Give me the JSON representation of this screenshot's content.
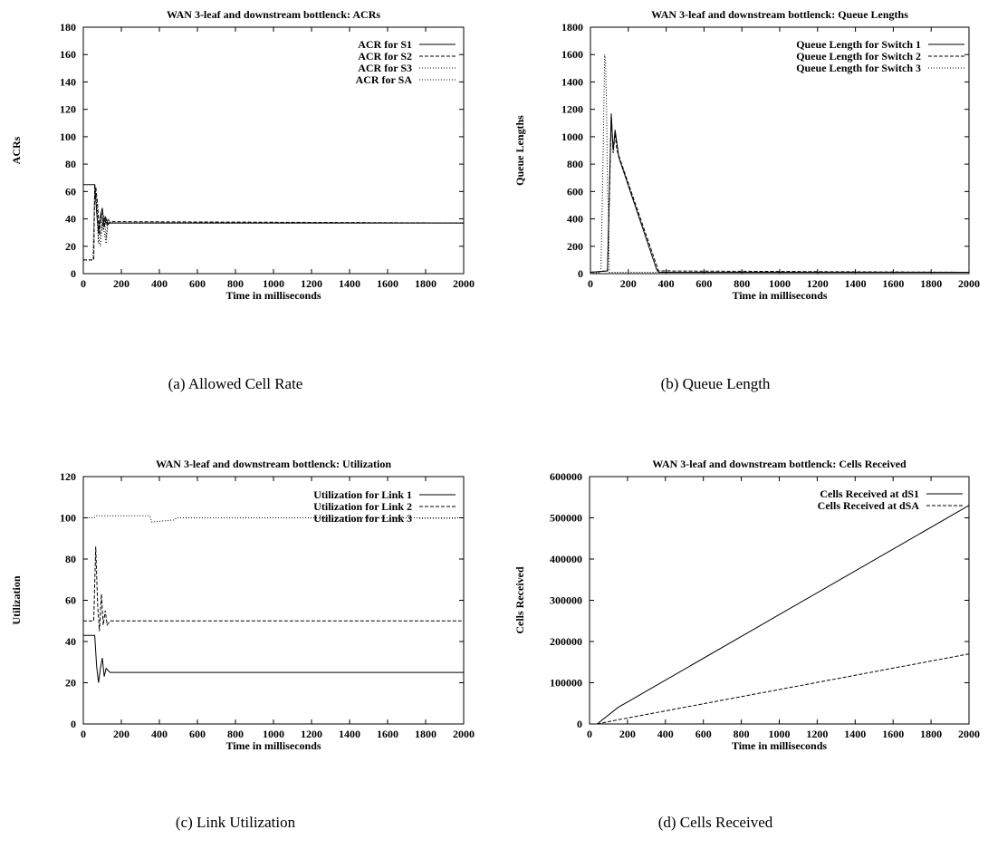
{
  "captions": [
    "(a) Allowed Cell Rate",
    "(b) Queue Length",
    "(c) Link Utilization",
    "(d) Cells Received"
  ],
  "chart_data": [
    {
      "type": "line",
      "title": "WAN 3-leaf and downstream bottlenck: ACRs",
      "xlabel": "Time in milliseconds",
      "ylabel": "ACRs",
      "xlim": [
        0,
        2000
      ],
      "ylim": [
        0,
        180
      ],
      "xticks": [
        0,
        200,
        400,
        600,
        800,
        1000,
        1200,
        1400,
        1600,
        1800,
        2000
      ],
      "yticks": [
        0,
        20,
        40,
        60,
        80,
        100,
        120,
        140,
        160,
        180
      ],
      "grid": false,
      "legend": "top-right",
      "series": [
        {
          "name": "ACR for S1",
          "style": "solid",
          "x": [
            0,
            60,
            70,
            80,
            90,
            100,
            110,
            120,
            130,
            140,
            2000
          ],
          "y": [
            65,
            65,
            45,
            30,
            42,
            48,
            34,
            40,
            36,
            37,
            37
          ]
        },
        {
          "name": "ACR for S2",
          "style": "dashed",
          "x": [
            0,
            55,
            60,
            65,
            75,
            85,
            95,
            105,
            115,
            125,
            140,
            2000
          ],
          "y": [
            10,
            10,
            64,
            64,
            50,
            28,
            45,
            32,
            42,
            35,
            38,
            37
          ]
        },
        {
          "name": "ACR for S3",
          "style": "dotted",
          "x": [
            0,
            55,
            60,
            70,
            80,
            90,
            100,
            110,
            120,
            130,
            140,
            2000
          ],
          "y": [
            10,
            10,
            64,
            55,
            25,
            20,
            40,
            30,
            22,
            40,
            37,
            37
          ]
        },
        {
          "name": "ACR for SA",
          "style": "dotted",
          "x": [
            0,
            50,
            60,
            70,
            80,
            95,
            110,
            120,
            130,
            140,
            2000
          ],
          "y": [
            10,
            10,
            60,
            48,
            22,
            32,
            42,
            26,
            40,
            37,
            37
          ]
        }
      ]
    },
    {
      "type": "line",
      "title": "WAN 3-leaf and downstream bottlenck: Queue Lengths",
      "xlabel": "Time in milliseconds",
      "ylabel": "Queue Lengths",
      "xlim": [
        0,
        2000
      ],
      "ylim": [
        0,
        1800
      ],
      "xticks": [
        0,
        200,
        400,
        600,
        800,
        1000,
        1200,
        1400,
        1600,
        1800,
        2000
      ],
      "yticks": [
        0,
        200,
        400,
        600,
        800,
        1000,
        1200,
        1400,
        1600,
        1800
      ],
      "grid": false,
      "legend": "top-right",
      "series": [
        {
          "name": "Queue Length for Switch 1",
          "style": "solid",
          "x": [
            0,
            90,
            100,
            110,
            120,
            130,
            140,
            150,
            350,
            360,
            2000
          ],
          "y": [
            10,
            20,
            600,
            1170,
            900,
            1050,
            950,
            850,
            30,
            10,
            10
          ]
        },
        {
          "name": "Queue Length for Switch 2",
          "style": "dashed",
          "x": [
            0,
            90,
            100,
            110,
            120,
            130,
            140,
            360,
            2000
          ],
          "y": [
            10,
            20,
            550,
            1150,
            880,
            1020,
            900,
            20,
            10
          ]
        },
        {
          "name": "Queue Length for Switch 3",
          "style": "dotted",
          "x": [
            0,
            55,
            65,
            75,
            80,
            85,
            90,
            95,
            100,
            2000
          ],
          "y": [
            0,
            10,
            700,
            1600,
            1550,
            1200,
            600,
            450,
            10,
            10
          ]
        }
      ]
    },
    {
      "type": "line",
      "title": "WAN 3-leaf and downstream bottlenck: Utilization",
      "xlabel": "Time in milliseconds",
      "ylabel": "Utilization",
      "xlim": [
        0,
        2000
      ],
      "ylim": [
        0,
        120
      ],
      "xticks": [
        0,
        200,
        400,
        600,
        800,
        1000,
        1200,
        1400,
        1600,
        1800,
        2000
      ],
      "yticks": [
        0,
        20,
        40,
        60,
        80,
        100,
        120
      ],
      "grid": false,
      "legend": "top-right",
      "series": [
        {
          "name": "Utilization for Link 1",
          "style": "solid",
          "x": [
            0,
            60,
            70,
            80,
            90,
            100,
            110,
            120,
            140,
            2000
          ],
          "y": [
            43,
            43,
            28,
            20,
            27,
            32,
            23,
            27,
            25,
            25
          ]
        },
        {
          "name": "Utilization for Link 2",
          "style": "dashed",
          "x": [
            0,
            55,
            65,
            75,
            85,
            95,
            105,
            115,
            125,
            140,
            2000
          ],
          "y": [
            50,
            50,
            86,
            58,
            45,
            63,
            48,
            55,
            48,
            50,
            50
          ]
        },
        {
          "name": "Utilization for Link 3",
          "style": "dotted",
          "x": [
            0,
            55,
            70,
            80,
            350,
            360,
            480,
            490,
            2000
          ],
          "y": [
            100,
            100,
            101,
            101,
            101,
            98,
            99,
            100,
            100
          ]
        }
      ]
    },
    {
      "type": "line",
      "title": "WAN 3-leaf and downstream bottlenck: Cells Received",
      "xlabel": "Time in milliseconds",
      "ylabel": "Cells Received",
      "xlim": [
        0,
        2000
      ],
      "ylim": [
        0,
        600000
      ],
      "xticks": [
        0,
        200,
        400,
        600,
        800,
        1000,
        1200,
        1400,
        1600,
        1800,
        2000
      ],
      "yticks": [
        0,
        100000,
        200000,
        300000,
        400000,
        500000,
        600000
      ],
      "grid": false,
      "legend": "top-right",
      "series": [
        {
          "name": "Cells Received at dS1",
          "style": "solid",
          "x": [
            40,
            150,
            2000
          ],
          "y": [
            0,
            40000,
            530000
          ]
        },
        {
          "name": "Cells Received at dSA",
          "style": "dashed",
          "x": [
            40,
            150,
            2000
          ],
          "y": [
            0,
            10000,
            170000
          ]
        }
      ]
    }
  ]
}
